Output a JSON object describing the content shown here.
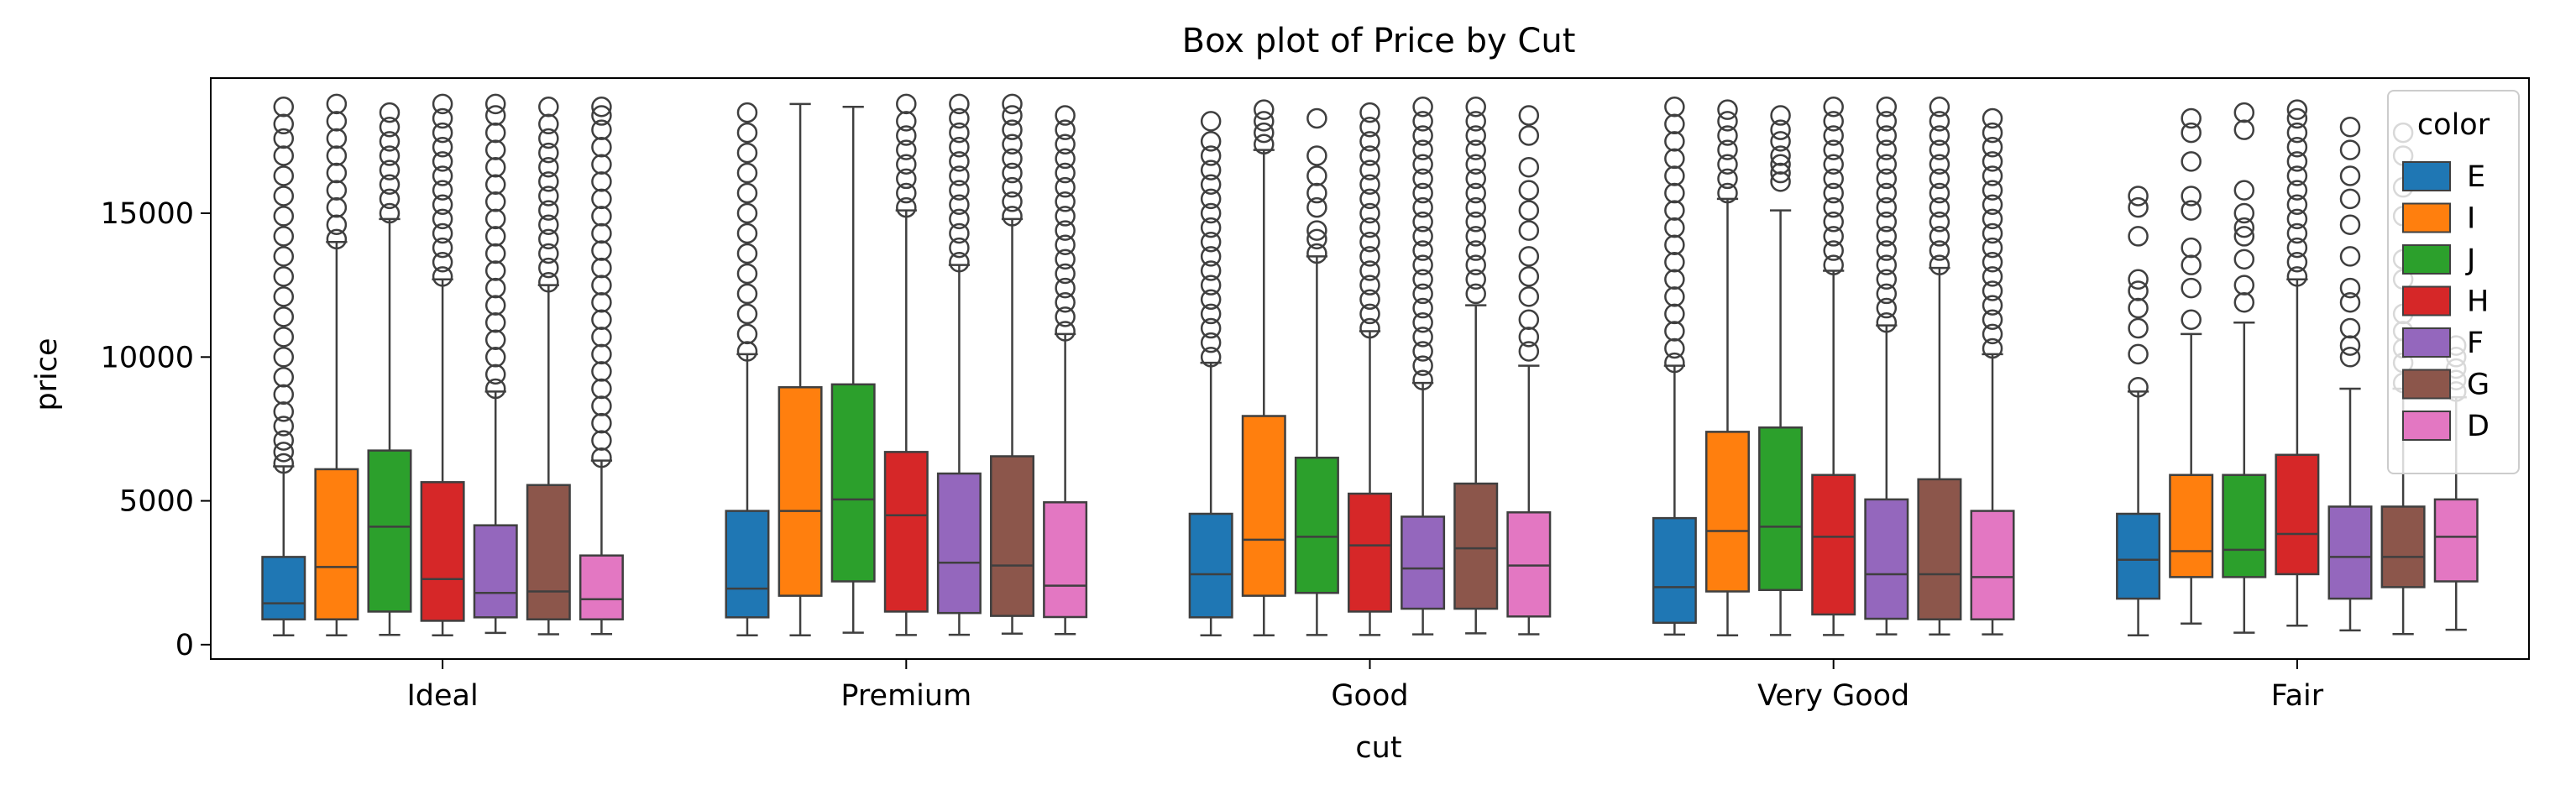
{
  "chart_data": {
    "type": "box",
    "title": "Box plot of Price by Cut",
    "xlabel": "cut",
    "ylabel": "price",
    "ylim": [
      -500,
      19700
    ],
    "yticks": [
      0,
      5000,
      10000,
      15000
    ],
    "grid": false,
    "legend": {
      "title": "color",
      "placement": "top-right"
    },
    "categories": [
      "Ideal",
      "Premium",
      "Good",
      "Very Good",
      "Fair"
    ],
    "series": [
      {
        "name": "E",
        "color": "#1f77b4",
        "boxes": [
          {
            "min": 326,
            "q1": 880,
            "median": 1437,
            "q3": 3050,
            "max": 6200,
            "outliers": [
              6300,
              6700,
              7100,
              7600,
              8100,
              8700,
              9300,
              10000,
              10700,
              11400,
              12100,
              12800,
              13500,
              14200,
              14900,
              15600,
              16300,
              17000,
              17600,
              18100,
              18700
            ]
          },
          {
            "min": 326,
            "q1": 950,
            "median": 1950,
            "q3": 4650,
            "max": 10100,
            "outliers": [
              10200,
              10800,
              11500,
              12200,
              12900,
              13600,
              14300,
              15000,
              15700,
              16400,
              17100,
              17800,
              18500
            ]
          },
          {
            "min": 326,
            "q1": 950,
            "median": 2450,
            "q3": 4550,
            "max": 9800,
            "outliers": [
              10000,
              10500,
              11000,
              11500,
              12000,
              12500,
              13000,
              13500,
              14000,
              14500,
              15000,
              15500,
              16000,
              16500,
              17000,
              17500,
              18200
            ]
          },
          {
            "min": 352,
            "q1": 760,
            "median": 2000,
            "q3": 4400,
            "max": 9700,
            "outliers": [
              9800,
              10300,
              10900,
              11500,
              12100,
              12700,
              13300,
              13900,
              14500,
              15100,
              15700,
              16300,
              16900,
              17500,
              18100,
              18700
            ]
          },
          {
            "min": 326,
            "q1": 1600,
            "median": 2950,
            "q3": 4550,
            "max": 8800,
            "outliers": [
              8950,
              10100,
              11000,
              11700,
              12300,
              12700,
              14200,
              15200,
              15600
            ]
          }
        ]
      },
      {
        "name": "I",
        "color": "#ff7f0e",
        "boxes": [
          {
            "min": 326,
            "q1": 880,
            "median": 2700,
            "q3": 6100,
            "max": 14000,
            "outliers": [
              14100,
              14600,
              15200,
              15800,
              16400,
              17000,
              17600,
              18200,
              18800
            ]
          },
          {
            "min": 326,
            "q1": 1700,
            "median": 4650,
            "q3": 8950,
            "max": 18800,
            "outliers": []
          },
          {
            "min": 326,
            "q1": 1700,
            "median": 3650,
            "q3": 7950,
            "max": 17200,
            "outliers": [
              17400,
              17800,
              18200,
              18600
            ]
          },
          {
            "min": 326,
            "q1": 1850,
            "median": 3950,
            "q3": 7400,
            "max": 15500,
            "outliers": [
              15700,
              16200,
              16700,
              17200,
              17700,
              18200,
              18600
            ]
          },
          {
            "min": 735,
            "q1": 2350,
            "median": 3250,
            "q3": 5900,
            "max": 10800,
            "outliers": [
              11300,
              12400,
              13200,
              13800,
              15100,
              15600,
              16800,
              17800,
              18300
            ]
          }
        ]
      },
      {
        "name": "J",
        "color": "#2ca02c",
        "boxes": [
          {
            "min": 340,
            "q1": 1150,
            "median": 4100,
            "q3": 6750,
            "max": 14800,
            "outliers": [
              15000,
              15500,
              16000,
              16500,
              17000,
              17500,
              18000,
              18500
            ]
          },
          {
            "min": 416,
            "q1": 2200,
            "median": 5050,
            "q3": 9050,
            "max": 18700,
            "outliers": []
          },
          {
            "min": 335,
            "q1": 1800,
            "median": 3750,
            "q3": 6500,
            "max": 13500,
            "outliers": [
              13600,
              14100,
              14400,
              15200,
              15700,
              16300,
              17000,
              18300
            ]
          },
          {
            "min": 336,
            "q1": 1900,
            "median": 4100,
            "q3": 7550,
            "max": 15100,
            "outliers": [
              16100,
              16400,
              16700,
              17000,
              17500,
              17900,
              18400
            ]
          },
          {
            "min": 416,
            "q1": 2350,
            "median": 3300,
            "q3": 5900,
            "max": 11200,
            "outliers": [
              11900,
              12500,
              13400,
              14200,
              14500,
              15000,
              15800,
              17900,
              18500
            ]
          }
        ]
      },
      {
        "name": "H",
        "color": "#d62728",
        "boxes": [
          {
            "min": 326,
            "q1": 830,
            "median": 2280,
            "q3": 5650,
            "max": 12700,
            "outliers": [
              12800,
              13300,
              13800,
              14300,
              14800,
              15300,
              15800,
              16300,
              16800,
              17300,
              17800,
              18300,
              18800
            ]
          },
          {
            "min": 337,
            "q1": 1150,
            "median": 4500,
            "q3": 6700,
            "max": 15100,
            "outliers": [
              15200,
              15700,
              16200,
              16700,
              17200,
              17700,
              18200,
              18800
            ]
          },
          {
            "min": 337,
            "q1": 1150,
            "median": 3450,
            "q3": 5250,
            "max": 10900,
            "outliers": [
              11000,
              11500,
              12000,
              12500,
              13000,
              13500,
              14000,
              14500,
              15000,
              15500,
              16000,
              16500,
              17000,
              17500,
              18000,
              18500
            ]
          },
          {
            "min": 337,
            "q1": 1050,
            "median": 3750,
            "q3": 5900,
            "max": 13000,
            "outliers": [
              13200,
              13700,
              14200,
              14700,
              15200,
              15700,
              16200,
              16700,
              17200,
              17700,
              18200,
              18700
            ]
          },
          {
            "min": 659,
            "q1": 2450,
            "median": 3850,
            "q3": 6600,
            "max": 12700,
            "outliers": [
              12800,
              13300,
              13800,
              14300,
              14800,
              15300,
              15800,
              16300,
              16800,
              17300,
              17800,
              18300,
              18600
            ]
          }
        ]
      },
      {
        "name": "F",
        "color": "#9467bd",
        "boxes": [
          {
            "min": 408,
            "q1": 950,
            "median": 1800,
            "q3": 4150,
            "max": 8800,
            "outliers": [
              8900,
              9400,
              10000,
              10600,
              11200,
              11800,
              12400,
              13000,
              13600,
              14200,
              14800,
              15400,
              16000,
              16600,
              17200,
              17800,
              18400,
              18800
            ]
          },
          {
            "min": 342,
            "q1": 1100,
            "median": 2850,
            "q3": 5950,
            "max": 13200,
            "outliers": [
              13300,
              13800,
              14300,
              14800,
              15300,
              15800,
              16300,
              16800,
              17300,
              17800,
              18300,
              18800
            ]
          },
          {
            "min": 357,
            "q1": 1250,
            "median": 2650,
            "q3": 4450,
            "max": 9100,
            "outliers": [
              9200,
              9700,
              10200,
              10700,
              11200,
              11700,
              12200,
              12700,
              13200,
              13700,
              14200,
              14700,
              15200,
              15700,
              16200,
              16700,
              17200,
              17700,
              18200,
              18700
            ]
          },
          {
            "min": 357,
            "q1": 900,
            "median": 2450,
            "q3": 5050,
            "max": 11100,
            "outliers": [
              11200,
              11700,
              12200,
              12700,
              13200,
              13700,
              14200,
              14700,
              15200,
              15700,
              16200,
              16700,
              17200,
              17700,
              18200,
              18700
            ]
          },
          {
            "min": 496,
            "q1": 1600,
            "median": 3050,
            "q3": 4800,
            "max": 8900,
            "outliers": [
              10000,
              10400,
              11000,
              11900,
              12400,
              13500,
              14600,
              15500,
              16300,
              17200,
              18000
            ]
          }
        ]
      },
      {
        "name": "G",
        "color": "#8c564b",
        "boxes": [
          {
            "min": 361,
            "q1": 880,
            "median": 1850,
            "q3": 5550,
            "max": 12500,
            "outliers": [
              12600,
              13100,
              13600,
              14100,
              14600,
              15100,
              15600,
              16100,
              16600,
              17100,
              17600,
              18100,
              18700
            ]
          },
          {
            "min": 382,
            "q1": 1000,
            "median": 2750,
            "q3": 6550,
            "max": 14800,
            "outliers": [
              14900,
              15400,
              15900,
              16400,
              16900,
              17400,
              17900,
              18400,
              18800
            ]
          },
          {
            "min": 394,
            "q1": 1250,
            "median": 3350,
            "q3": 5600,
            "max": 11800,
            "outliers": [
              12200,
              12700,
              13200,
              13700,
              14200,
              14700,
              15200,
              15700,
              16200,
              16700,
              17200,
              17700,
              18200,
              18700
            ]
          },
          {
            "min": 354,
            "q1": 880,
            "median": 2450,
            "q3": 5750,
            "max": 13100,
            "outliers": [
              13200,
              13700,
              14200,
              14700,
              15200,
              15700,
              16200,
              16700,
              17200,
              17700,
              18200,
              18700
            ]
          },
          {
            "min": 369,
            "q1": 2000,
            "median": 3050,
            "q3": 4800,
            "max": 8900,
            "outliers": [
              9100,
              9800,
              10300,
              10900,
              11500,
              12700,
              13400,
              14900,
              15900,
              17000,
              17800
            ]
          }
        ]
      },
      {
        "name": "D",
        "color": "#e377c2",
        "boxes": [
          {
            "min": 367,
            "q1": 880,
            "median": 1580,
            "q3": 3100,
            "max": 6400,
            "outliers": [
              6500,
              7100,
              7700,
              8300,
              8900,
              9500,
              10100,
              10700,
              11300,
              11900,
              12500,
              13100,
              13700,
              14300,
              14900,
              15500,
              16100,
              16700,
              17300,
              17900,
              18400,
              18700
            ]
          },
          {
            "min": 367,
            "q1": 960,
            "median": 2050,
            "q3": 4950,
            "max": 10800,
            "outliers": [
              10900,
              11400,
              11900,
              12400,
              12900,
              13400,
              13900,
              14400,
              14900,
              15400,
              15900,
              16400,
              16900,
              17400,
              17900,
              18400
            ]
          },
          {
            "min": 361,
            "q1": 980,
            "median": 2750,
            "q3": 4600,
            "max": 9700,
            "outliers": [
              10200,
              10700,
              11300,
              12100,
              12800,
              13500,
              14400,
              15100,
              15800,
              16600,
              17700,
              18400
            ]
          },
          {
            "min": 357,
            "q1": 880,
            "median": 2350,
            "q3": 4650,
            "max": 10100,
            "outliers": [
              10300,
              10800,
              11300,
              11800,
              12300,
              12800,
              13300,
              13800,
              14300,
              14800,
              15300,
              15800,
              16300,
              16800,
              17300,
              17800,
              18300
            ]
          },
          {
            "min": 518,
            "q1": 2200,
            "median": 3750,
            "q3": 5050,
            "max": 8600,
            "outliers": [
              8800,
              9200,
              9600,
              10000,
              10400
            ]
          }
        ]
      }
    ]
  }
}
